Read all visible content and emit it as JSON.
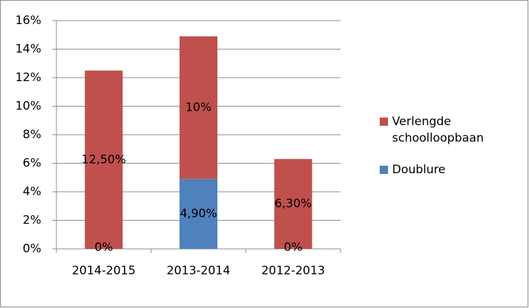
{
  "chart_data": {
    "type": "stacked_bar",
    "categories": [
      "2014-2015",
      "2013-2014",
      "2012-2013"
    ],
    "series": [
      {
        "name": "Doublure",
        "color": "#4f81bd",
        "values": [
          0,
          4.9,
          0
        ],
        "value_labels": [
          "0%",
          "4,90%",
          "0%"
        ]
      },
      {
        "name": "Verlengde schoolloopbaan",
        "color": "#c0504d",
        "values": [
          12.5,
          10,
          6.3
        ],
        "value_labels": [
          "12,50%",
          "10%",
          "6,30%"
        ]
      }
    ],
    "ylim": [
      0,
      16
    ],
    "yticks": [
      {
        "value": 0,
        "label": "0%"
      },
      {
        "value": 2,
        "label": "2%"
      },
      {
        "value": 4,
        "label": "4%"
      },
      {
        "value": 6,
        "label": "6%"
      },
      {
        "value": 8,
        "label": "8%"
      },
      {
        "value": 10,
        "label": "10%"
      },
      {
        "value": 12,
        "label": "12%"
      },
      {
        "value": 14,
        "label": "14%"
      },
      {
        "value": 16,
        "label": "16%"
      }
    ],
    "grid": true,
    "legend": "right"
  }
}
